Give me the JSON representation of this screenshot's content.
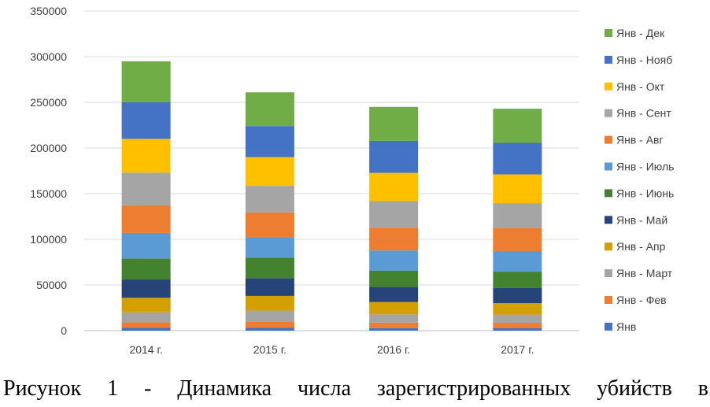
{
  "chart_data": {
    "type": "bar",
    "stacked": true,
    "categories": [
      "2014 г.",
      "2015 г.",
      "2016 г.",
      "2017 г."
    ],
    "ylim": [
      0,
      350000
    ],
    "yticks": [
      0,
      50000,
      100000,
      150000,
      200000,
      250000,
      300000,
      350000
    ],
    "grid": true,
    "legend_position": "right",
    "series": [
      {
        "name": "Янв",
        "color": "#4472c4",
        "values": [
          3000,
          3000,
          2800,
          2600
        ]
      },
      {
        "name": "Янв - Фев",
        "color": "#ed7d31",
        "values": [
          6000,
          7000,
          6000,
          6000
        ]
      },
      {
        "name": "Янв - Март",
        "color": "#a5a5a5",
        "values": [
          11000,
          12000,
          9000,
          9000
        ]
      },
      {
        "name": "Янв - Апр",
        "color": "#d4a000",
        "values": [
          16000,
          16000,
          13500,
          12500
        ]
      },
      {
        "name": "Янв - Май",
        "color": "#264478",
        "values": [
          20000,
          19500,
          16500,
          16500
        ]
      },
      {
        "name": "Янв - Июнь",
        "color": "#43822f",
        "values": [
          23000,
          22500,
          18000,
          18000
        ]
      },
      {
        "name": "Янв - Июль",
        "color": "#5b9bd5",
        "values": [
          28000,
          22500,
          22000,
          22500
        ]
      },
      {
        "name": "Янв - Авг",
        "color": "#ed7d31",
        "values": [
          30000,
          27000,
          25000,
          25000
        ]
      },
      {
        "name": "Янв - Сент",
        "color": "#a5a5a5",
        "values": [
          36000,
          29000,
          29000,
          27500
        ]
      },
      {
        "name": "Янв - Окт",
        "color": "#ffc000",
        "values": [
          37000,
          31500,
          31000,
          31500
        ]
      },
      {
        "name": "Янв - Нояб",
        "color": "#4472c4",
        "values": [
          40000,
          34000,
          35000,
          34500
        ]
      },
      {
        "name": "Янв - Дек",
        "color": "#70ad47",
        "values": [
          45000,
          37000,
          37200,
          37400
        ]
      }
    ]
  },
  "caption": "Рисунок 1 - Динамика числа зарегистрированных убийств в"
}
